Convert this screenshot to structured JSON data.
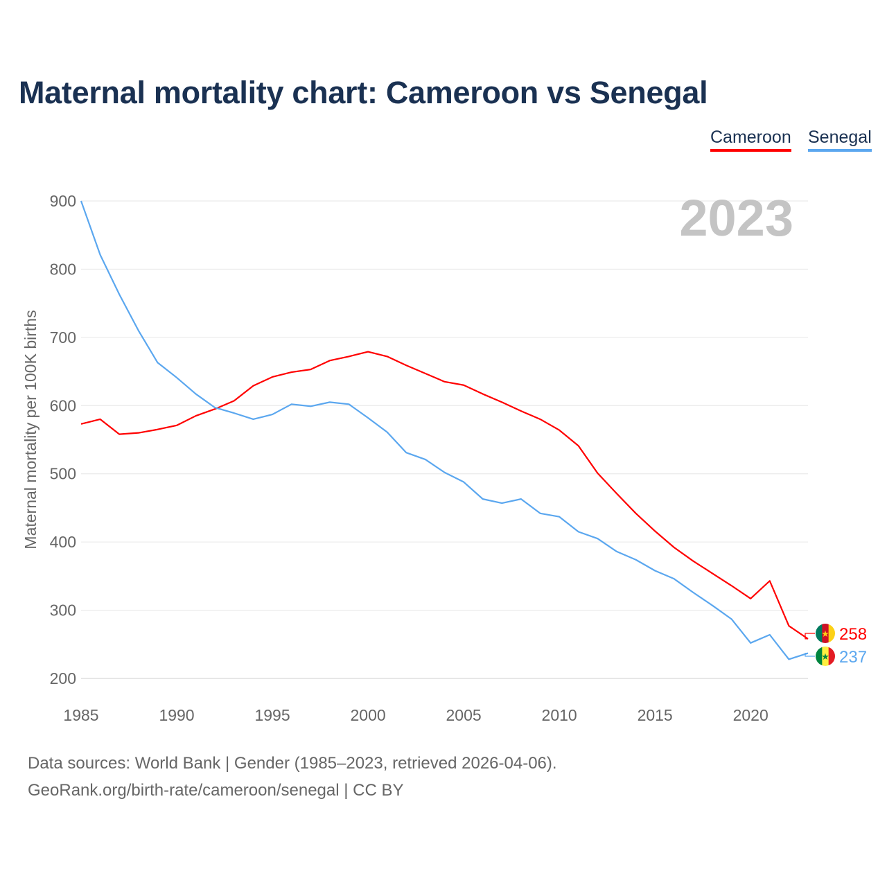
{
  "chart_data": {
    "type": "line",
    "title": "Maternal mortality chart: Cameroon vs Senegal",
    "xlabel": "",
    "ylabel": "Maternal mortality per 100K births",
    "xlim": [
      1985,
      2023
    ],
    "ylim": [
      200,
      900
    ],
    "x_ticks": [
      "1985",
      "1990",
      "1995",
      "2000",
      "2005",
      "2010",
      "2015",
      "2020"
    ],
    "y_ticks": [
      "200",
      "300",
      "400",
      "500",
      "600",
      "700",
      "800",
      "900"
    ],
    "year_label": "2023",
    "grid": true,
    "legend_position": "top-right",
    "x": [
      1985,
      1986,
      1987,
      1988,
      1989,
      1990,
      1991,
      1992,
      1993,
      1994,
      1995,
      1996,
      1997,
      1998,
      1999,
      2000,
      2001,
      2002,
      2003,
      2004,
      2005,
      2006,
      2007,
      2008,
      2009,
      2010,
      2011,
      2012,
      2013,
      2014,
      2015,
      2016,
      2017,
      2018,
      2019,
      2020,
      2021,
      2022,
      2023
    ],
    "series": [
      {
        "name": "Cameroon",
        "color": "#ff0000",
        "end_label": "258",
        "flag": "cameroon-flag-icon",
        "values": [
          573,
          580,
          558,
          560,
          565,
          571,
          585,
          595,
          607,
          629,
          642,
          649,
          653,
          666,
          672,
          679,
          672,
          659,
          647,
          635,
          630,
          617,
          605,
          592,
          580,
          564,
          541,
          501,
          471,
          442,
          416,
          392,
          372,
          354,
          336,
          317,
          343,
          277,
          258
        ]
      },
      {
        "name": "Senegal",
        "color": "#5ba7ef",
        "end_label": "237",
        "flag": "senegal-flag-icon",
        "values": [
          900,
          821,
          763,
          710,
          663,
          641,
          617,
          597,
          589,
          580,
          587,
          602,
          599,
          605,
          602,
          582,
          561,
          531,
          521,
          502,
          488,
          463,
          457,
          463,
          442,
          437,
          415,
          405,
          386,
          374,
          358,
          346,
          326,
          307,
          287,
          252,
          264,
          228,
          237
        ]
      }
    ]
  },
  "footer": {
    "line1": "Data sources: World Bank | Gender (1985–2023, retrieved 2026-04-06).",
    "line2": "GeoRank.org/birth-rate/cameroon/senegal | CC BY"
  }
}
